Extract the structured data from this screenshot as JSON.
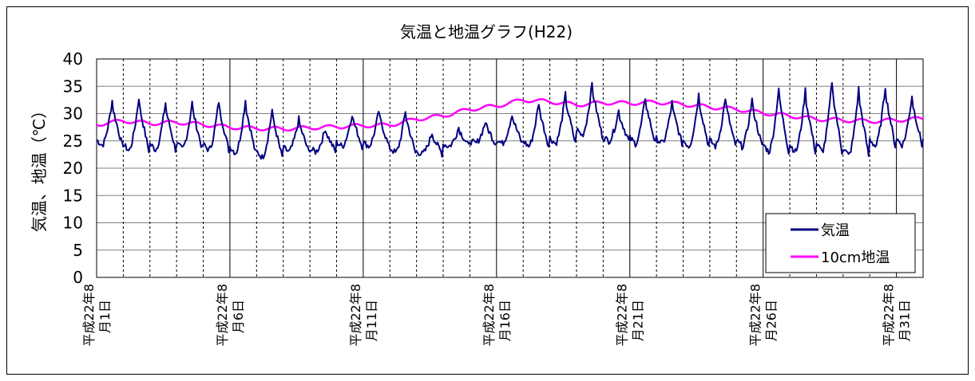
{
  "chart_data": {
    "type": "line",
    "title": "気温と地温グラフ(H22)",
    "ylabel": "気温、地温（℃）",
    "xlabel": "",
    "ylim": [
      0,
      40
    ],
    "yticks": [
      0,
      5,
      10,
      15,
      20,
      25,
      30,
      35,
      40
    ],
    "x_range_days": [
      1,
      32
    ],
    "x_tick_labels": [
      {
        "day": 1,
        "line1": "平成22年8",
        "line2": "月1日"
      },
      {
        "day": 6,
        "line1": "平成22年8",
        "line2": "月6日"
      },
      {
        "day": 11,
        "line1": "平成22年8",
        "line2": "月11日"
      },
      {
        "day": 16,
        "line1": "平成22年8",
        "line2": "月16日"
      },
      {
        "day": 21,
        "line1": "平成22年8",
        "line2": "月21日"
      },
      {
        "day": 26,
        "line1": "平成22年8",
        "line2": "月26日"
      },
      {
        "day": 31,
        "line1": "平成22年8",
        "line2": "月31日"
      }
    ],
    "grid": true,
    "legend_position": "bottom-right",
    "series": [
      {
        "name": "気温",
        "color": "#000080",
        "daily_min": [
          24.2,
          23.2,
          23.4,
          23.5,
          23.3,
          22.8,
          22.0,
          23.0,
          23.0,
          24.0,
          24.0,
          22.8,
          22.6,
          24.0,
          24.5,
          24.5,
          24.0,
          24.5,
          26.0,
          25.0,
          24.5,
          24.5,
          24.0,
          24.0,
          24.0,
          23.0,
          23.0,
          23.0,
          22.3,
          24.0,
          24.3
        ],
        "daily_max": [
          32.4,
          33.0,
          32.0,
          32.0,
          32.3,
          32.5,
          30.7,
          29.0,
          27.3,
          30.0,
          30.5,
          30.5,
          26.5,
          27.5,
          28.5,
          30.0,
          32.0,
          33.5,
          35.5,
          30.5,
          33.0,
          32.0,
          33.5,
          33.0,
          32.6,
          34.7,
          34.3,
          36.0,
          34.5,
          35.0,
          33.3
        ]
      },
      {
        "name": "10cm地温",
        "color": "#ff00ff",
        "daily": [
          28.0,
          28.7,
          28.2,
          28.4,
          28.0,
          27.5,
          27.3,
          27.2,
          27.4,
          27.6,
          27.8,
          27.9,
          29.0,
          29.6,
          30.8,
          31.4,
          32.5,
          32.2,
          31.6,
          32.0,
          31.9,
          32.1,
          31.7,
          31.2,
          30.8,
          30.1,
          29.6,
          29.0,
          28.8,
          28.6,
          28.8,
          29.1
        ]
      }
    ]
  }
}
